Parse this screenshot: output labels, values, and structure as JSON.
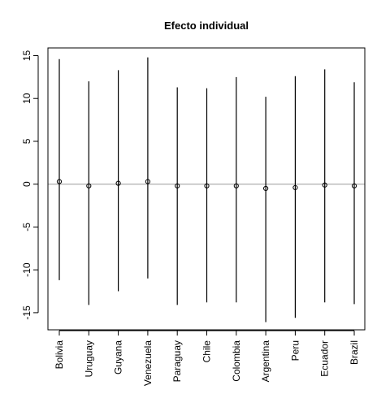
{
  "chart_data": {
    "type": "scatter",
    "title": "Efecto individual",
    "xlabel": "",
    "ylabel": "",
    "categories": [
      "Bolivia",
      "Uruguay",
      "Guyana",
      "Venezuela",
      "Paraguay",
      "Chile",
      "Colombia",
      "Argentina",
      "Peru",
      "Ecuador",
      "Brazil"
    ],
    "series": [
      {
        "estimate": [
          0.3,
          -0.2,
          0.1,
          0.3,
          -0.2,
          -0.2,
          -0.2,
          -0.5,
          -0.4,
          -0.1,
          -0.2
        ],
        "lower": [
          -11.2,
          -14.1,
          -12.5,
          -11.0,
          -14.1,
          -13.8,
          -13.8,
          -16.1,
          -15.6,
          -13.8,
          -14.0
        ],
        "upper": [
          14.6,
          12.0,
          13.3,
          14.8,
          11.3,
          11.2,
          12.5,
          10.2,
          12.6,
          13.4,
          11.9
        ]
      }
    ],
    "ylim": [
      -17,
      15.9
    ],
    "yticks": [
      -15,
      -10,
      -5,
      0,
      5,
      10,
      15
    ],
    "ytick_labels": [
      "-15",
      "-10",
      "-5",
      "0",
      "5",
      "10",
      "15"
    ],
    "reference_line": 0,
    "reference_line_color": "#9a9a9a",
    "grid": false,
    "legend": "none"
  }
}
